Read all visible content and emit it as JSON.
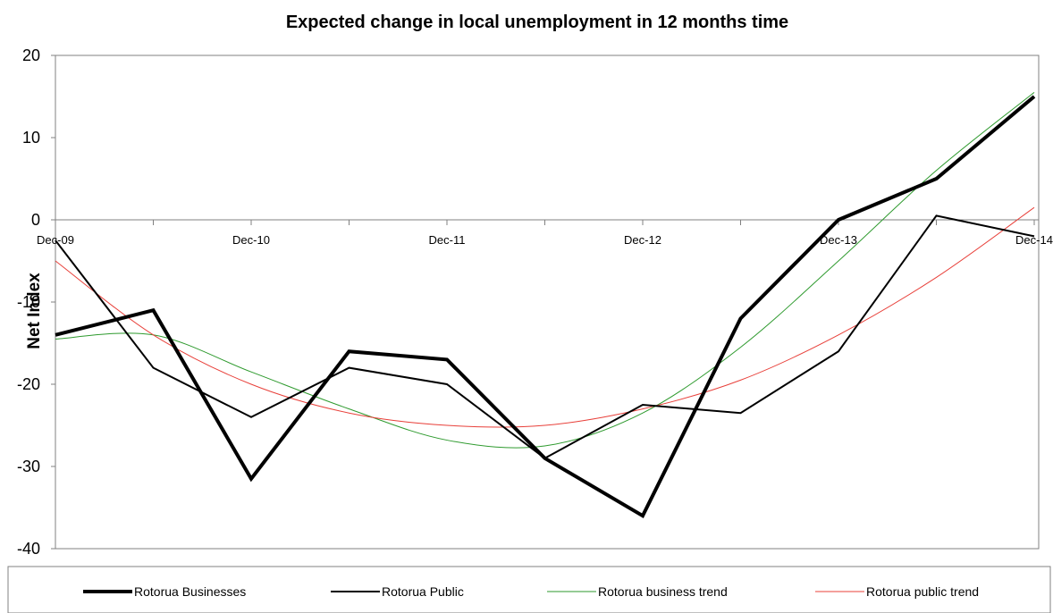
{
  "chart_data": {
    "type": "line",
    "title": "Expected change in local unemployment in 12 months time",
    "xlabel": "",
    "ylabel": "Net Index",
    "ylim": [
      -40,
      20
    ],
    "yticks": [
      20,
      10,
      0,
      -10,
      -20,
      -30,
      -40
    ],
    "x": [
      "Dec-09",
      "Jun-10",
      "Dec-10",
      "Jun-11",
      "Dec-11",
      "Jun-12",
      "Dec-12",
      "Jun-13",
      "Dec-13",
      "Jun-14",
      "Dec-14"
    ],
    "x_tick_labels": [
      "Dec-09",
      "Dec-10",
      "Dec-11",
      "Dec-12",
      "Dec-13",
      "Dec-14"
    ],
    "x_tick_label_positions": [
      0,
      2,
      4,
      6,
      8,
      10
    ],
    "series": [
      {
        "name": "Rotorua Businesses",
        "color": "#000000",
        "style": "thick",
        "values": [
          -14,
          -11,
          -31.5,
          -16,
          -17,
          -29,
          -36,
          -12,
          0,
          5,
          15
        ]
      },
      {
        "name": "Rotorua Public",
        "color": "#000000",
        "style": "thin",
        "values": [
          -2.5,
          -18,
          -24,
          -18,
          -20,
          -29,
          -22.5,
          -23.5,
          -16,
          0.5,
          -2
        ]
      },
      {
        "name": "Rotorua business trend",
        "color": "#2e9a2e",
        "style": "trend",
        "values": [
          -14.5,
          -14,
          -18.5,
          -23,
          -26.8,
          -27.5,
          -23.5,
          -15.5,
          -5,
          6,
          15.5
        ]
      },
      {
        "name": "Rotorua public trend",
        "color": "#e8403a",
        "style": "trend",
        "values": [
          -5,
          -14,
          -20,
          -23.5,
          -25,
          -25,
          -23,
          -19.5,
          -14,
          -7,
          1.5
        ]
      }
    ],
    "grid": false,
    "legend_position": "bottom"
  }
}
